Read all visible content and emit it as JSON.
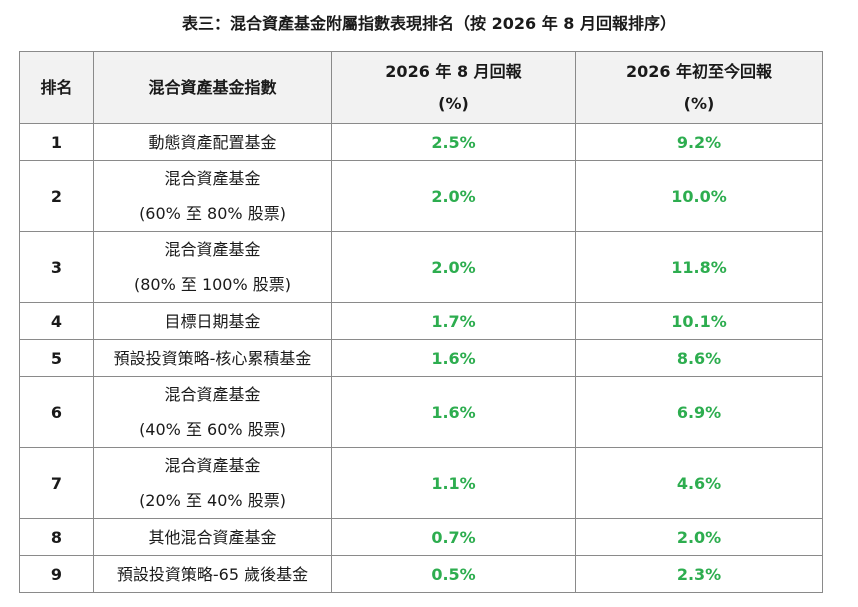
{
  "title": "表三：混合資產基金附屬指數表現排名（按 2026 年 8 月回報排序）",
  "headers": {
    "rank": "排名",
    "index": "混合資產基金指數",
    "aug": [
      "2026 年 8 月回報",
      "(%)"
    ],
    "ytd": [
      "2026 年初至今回報",
      "(%)"
    ]
  },
  "colors": {
    "value_text": "#2dad4f",
    "header_bg": "#f2f2f2",
    "border": "#8a8a8a"
  },
  "rows": [
    {
      "rank": "1",
      "name": [
        "動態資產配置基金"
      ],
      "aug": "2.5%",
      "ytd": "9.2%"
    },
    {
      "rank": "2",
      "name": [
        "混合資產基金",
        "(60% 至 80% 股票)"
      ],
      "aug": "2.0%",
      "ytd": "10.0%"
    },
    {
      "rank": "3",
      "name": [
        "混合資產基金",
        "(80% 至 100% 股票)"
      ],
      "aug": "2.0%",
      "ytd": "11.8%"
    },
    {
      "rank": "4",
      "name": [
        "目標日期基金"
      ],
      "aug": "1.7%",
      "ytd": "10.1%"
    },
    {
      "rank": "5",
      "name": [
        "預設投資策略-核心累積基金"
      ],
      "aug": "1.6%",
      "ytd": "8.6%"
    },
    {
      "rank": "6",
      "name": [
        "混合資產基金",
        "(40% 至 60% 股票)"
      ],
      "aug": "1.6%",
      "ytd": "6.9%"
    },
    {
      "rank": "7",
      "name": [
        "混合資產基金",
        "(20% 至 40% 股票)"
      ],
      "aug": "1.1%",
      "ytd": "4.6%"
    },
    {
      "rank": "8",
      "name": [
        "其他混合資產基金"
      ],
      "aug": "0.7%",
      "ytd": "2.0%"
    },
    {
      "rank": "9",
      "name": [
        "預設投資策略-65 歲後基金"
      ],
      "aug": "0.5%",
      "ytd": "2.3%"
    }
  ]
}
